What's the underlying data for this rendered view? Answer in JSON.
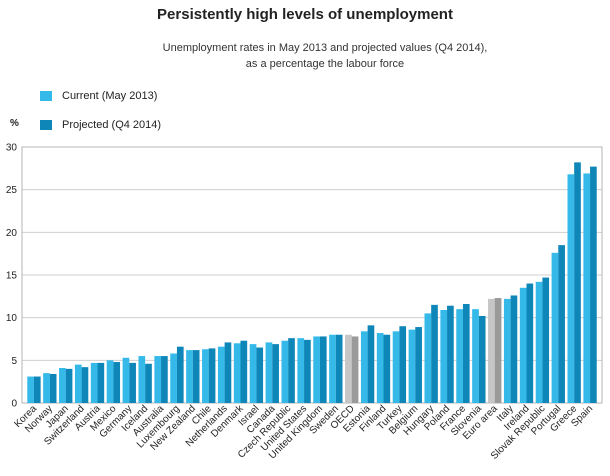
{
  "chart_data": {
    "type": "bar",
    "title": "Persistently high levels of unemployment",
    "subtitle_line1": "Unemployment rates in May 2013 and projected values (Q4 2014),",
    "subtitle_line2": "as a percentage the labour force",
    "unit_label": "%",
    "ylim": [
      0,
      30
    ],
    "yticks": [
      0,
      5,
      10,
      15,
      20,
      25,
      30
    ],
    "colors": {
      "current": "#35b9e9",
      "projected": "#0e86b8",
      "highlight_current": "#c6c6c6",
      "highlight_projected": "#9a9a9a",
      "grid": "#cfcfcf"
    },
    "highlight_categories": [
      "OECD",
      "Euro area"
    ],
    "categories": [
      "Korea",
      "Norway",
      "Japan",
      "Switzerland",
      "Austria",
      "Mexico",
      "Germany",
      "Iceland",
      "Australia",
      "Luxembourg",
      "New Zealand",
      "Chile",
      "Netherlands",
      "Denmark",
      "Israel",
      "Canada",
      "Czech Republic",
      "United States",
      "United Kingdom",
      "Sweden",
      "OECD",
      "Estonia",
      "Finland",
      "Turkey",
      "Belgium",
      "Hungary",
      "Poland",
      "France",
      "Slovenia",
      "Euro area",
      "Italy",
      "Ireland",
      "Slovak Republic",
      "Portugal",
      "Greece",
      "Spain"
    ],
    "series": [
      {
        "name": "Current (May 2013)",
        "values": [
          3.1,
          3.5,
          4.1,
          4.5,
          4.7,
          5.0,
          5.3,
          5.5,
          5.5,
          5.8,
          6.2,
          6.3,
          6.6,
          7.0,
          6.9,
          7.1,
          7.3,
          7.6,
          7.8,
          8.0,
          8.0,
          8.4,
          8.2,
          8.4,
          8.6,
          10.5,
          10.9,
          11.0,
          11.0,
          12.2,
          12.2,
          13.5,
          14.2,
          17.6,
          26.8,
          26.9
        ]
      },
      {
        "name": "Projected (Q4 2014)",
        "values": [
          3.1,
          3.4,
          4.0,
          4.2,
          4.7,
          4.8,
          4.7,
          4.6,
          5.5,
          6.6,
          6.2,
          6.4,
          7.1,
          7.3,
          6.5,
          6.9,
          7.6,
          7.4,
          7.8,
          8.0,
          7.8,
          9.1,
          8.0,
          9.0,
          8.9,
          11.5,
          11.4,
          11.6,
          10.2,
          12.3,
          12.6,
          14.0,
          14.7,
          18.5,
          28.2,
          27.7
        ]
      }
    ]
  }
}
